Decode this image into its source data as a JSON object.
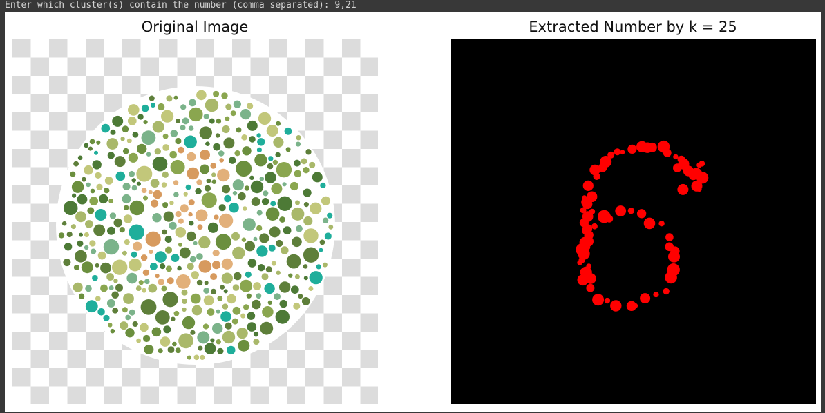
{
  "console": {
    "prompt": "Enter which cluster(s) contain the number (comma separated): 9,21"
  },
  "figure": {
    "left_panel": {
      "title": "Original Image"
    },
    "right_panel": {
      "title": "Extracted Number by k = 25"
    }
  },
  "colors": {
    "console_bg": "#383838",
    "console_text": "#d4d4d4",
    "checker_gray": "#dcdcdc",
    "extracted_dot": "#ff0000",
    "extracted_bg": "#000000",
    "dot_palette": [
      "#6b8f3e",
      "#8aa64f",
      "#a9b86a",
      "#c2c77a",
      "#5e7f3a",
      "#1fae9b",
      "#7bb38a",
      "#d79a5e",
      "#e2b07a",
      "#4d7a36"
    ]
  }
}
